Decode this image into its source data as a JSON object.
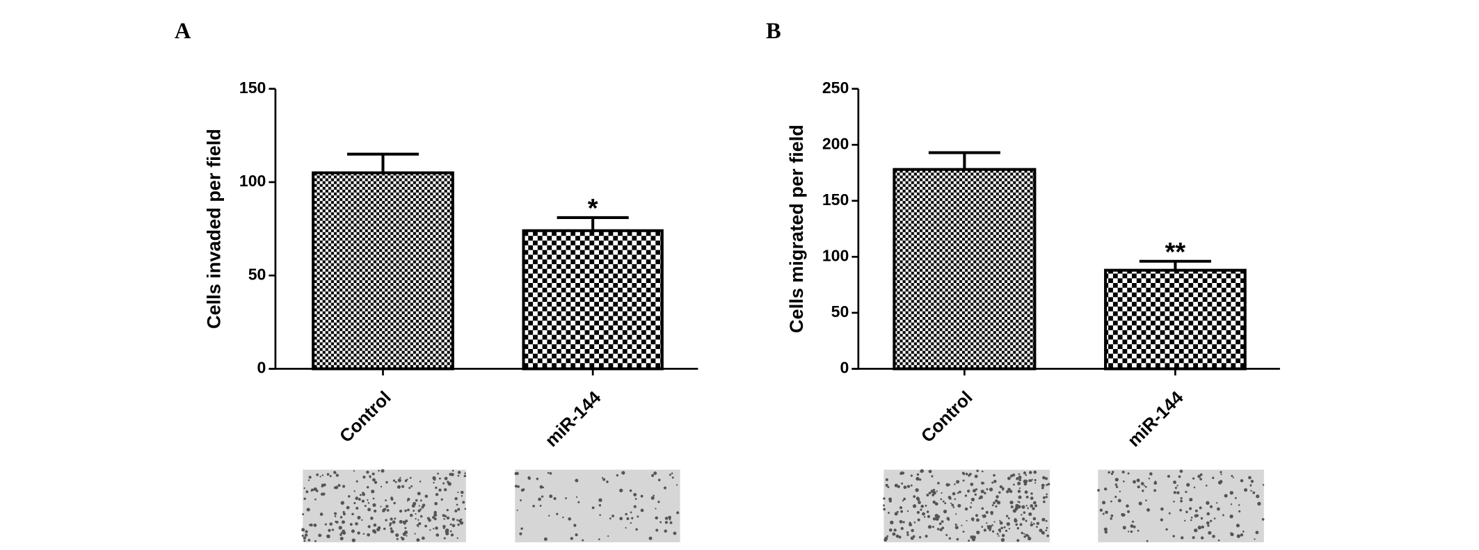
{
  "chart_data": [
    {
      "type": "bar",
      "label": "A",
      "y_label": "Cells invaded per field",
      "categories": [
        "Control",
        "miR-144"
      ],
      "values": [
        105,
        74
      ],
      "errors": [
        10,
        7
      ],
      "annotations": [
        null,
        "*"
      ],
      "color": "#000000",
      "ylim": [
        0,
        150
      ],
      "yticks": [
        0,
        50,
        100,
        150
      ]
    },
    {
      "type": "bar",
      "label": "B",
      "y_label": "Cells migrated per field",
      "categories": [
        "Control",
        "miR-144"
      ],
      "values": [
        178,
        88
      ],
      "errors": [
        15,
        8
      ],
      "annotations": [
        null,
        "**"
      ],
      "color": "#000000",
      "ylim": [
        0,
        250
      ],
      "yticks": [
        0,
        50,
        100,
        150,
        200,
        250
      ]
    }
  ]
}
